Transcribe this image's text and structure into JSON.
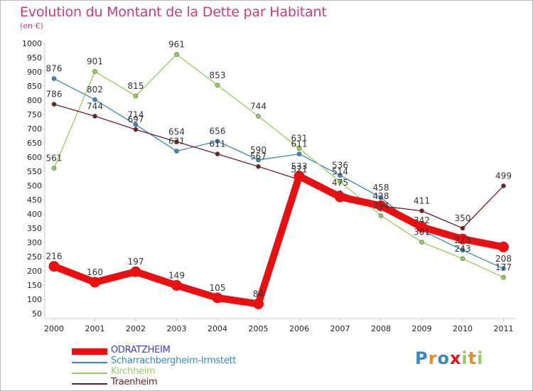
{
  "chart_data": {
    "type": "line",
    "title": "Evolution du Montant de la Dette par Habitant",
    "subtitle": "(en €)",
    "x": [
      "2000",
      "2001",
      "2002",
      "2003",
      "2004",
      "2005",
      "2006",
      "2007",
      "2008",
      "2009",
      "2010",
      "2011"
    ],
    "ylim": [
      50,
      1000
    ],
    "yticks": [
      50,
      100,
      150,
      200,
      250,
      300,
      350,
      400,
      450,
      500,
      550,
      600,
      650,
      700,
      750,
      800,
      850,
      900,
      950,
      1000
    ],
    "grid": false,
    "legend": "bottom-left",
    "series": [
      {
        "name": "ODRATZHEIM",
        "color": "#e81010",
        "values": [
          216,
          160,
          197,
          149,
          105,
          84,
          533,
          460,
          429,
          354,
          312,
          284
        ],
        "labels": [
          "216",
          "160",
          "197",
          "149",
          "105",
          "84",
          "533",
          "",
          "",
          "",
          "",
          ""
        ]
      },
      {
        "name": "Scharrachbergheim-Irmstett",
        "color": "#3a87c4",
        "values": [
          876,
          802,
          714,
          621,
          656,
          590,
          611,
          536,
          458,
          342,
          273,
          208
        ],
        "labels": [
          "876",
          "802",
          "714",
          "621",
          "656",
          "590",
          "611",
          "536",
          "458",
          "342",
          "273",
          "208"
        ]
      },
      {
        "name": "Kirchheim",
        "color": "#8fd15a",
        "values": [
          561,
          901,
          815,
          961,
          853,
          744,
          631,
          514,
          394,
          301,
          243,
          177
        ],
        "labels": [
          "561",
          "901",
          "815",
          "961",
          "853",
          "744",
          "631",
          "514",
          "394",
          "301",
          "243",
          "177"
        ]
      },
      {
        "name": "Traenheim",
        "color": "#6e1f26",
        "values": [
          786,
          744,
          697,
          654,
          611,
          567,
          521,
          475,
          428,
          411,
          350,
          499
        ],
        "labels": [
          "786",
          "744",
          "697",
          "654",
          "611",
          "567",
          "521",
          "475",
          "428",
          "411",
          "350",
          "499"
        ]
      }
    ]
  },
  "logo": {
    "letters": [
      "P",
      "r",
      "o",
      "x",
      "i",
      "t",
      "i"
    ],
    "colors": [
      "#3a87c4",
      "#f08a1e",
      "#3a87c4",
      "#e81010",
      "#8fd15a",
      "#f08a1e",
      "#8fd15a"
    ]
  }
}
